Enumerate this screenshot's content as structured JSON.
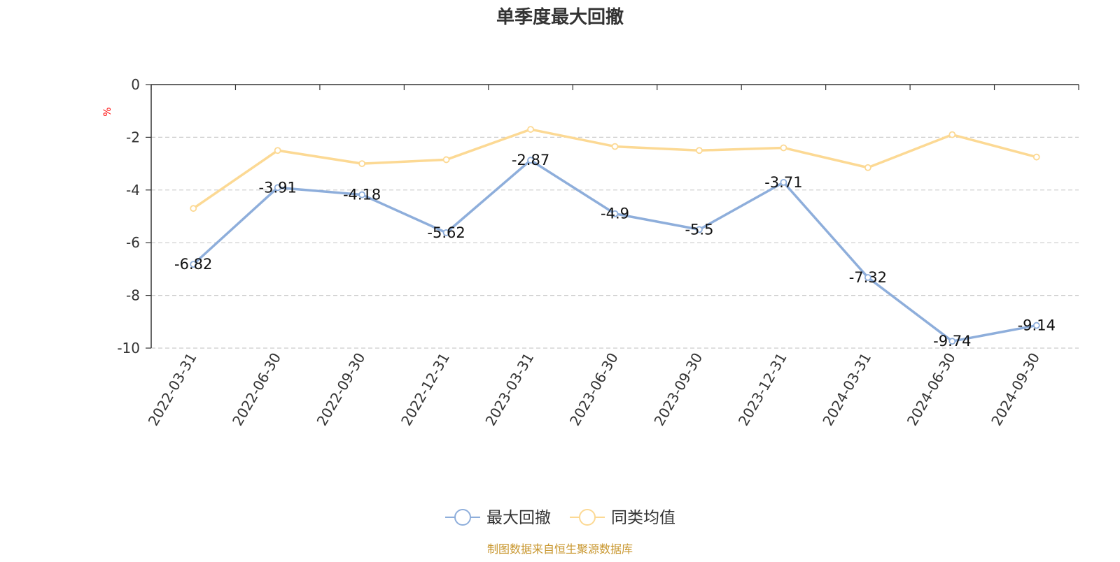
{
  "chart_data": {
    "type": "line",
    "title": "单季度最大回撤",
    "unit_label": "%",
    "source_note": "制图数据来自恒生聚源数据库",
    "categories": [
      "2022-03-31",
      "2022-06-30",
      "2022-09-30",
      "2022-12-31",
      "2023-03-31",
      "2023-06-30",
      "2023-09-30",
      "2023-12-31",
      "2024-03-31",
      "2024-06-30",
      "2024-09-30"
    ],
    "ylim": [
      -10,
      0
    ],
    "yticks": [
      0,
      -2,
      -4,
      -6,
      -8,
      -10
    ],
    "grid": true,
    "legend_position": "bottom-center",
    "series": [
      {
        "name": "最大回撤",
        "color": "#8eaedb",
        "show_labels": true,
        "values": [
          -6.82,
          -3.91,
          -4.18,
          -5.62,
          -2.87,
          -4.9,
          -5.5,
          -3.71,
          -7.32,
          -9.74,
          -9.14
        ]
      },
      {
        "name": "同类均值",
        "color": "#fcd994",
        "show_labels": false,
        "values": [
          -4.7,
          -2.5,
          -3.0,
          -2.85,
          -1.7,
          -2.35,
          -2.5,
          -2.4,
          -3.15,
          -1.9,
          -2.75
        ]
      }
    ]
  }
}
